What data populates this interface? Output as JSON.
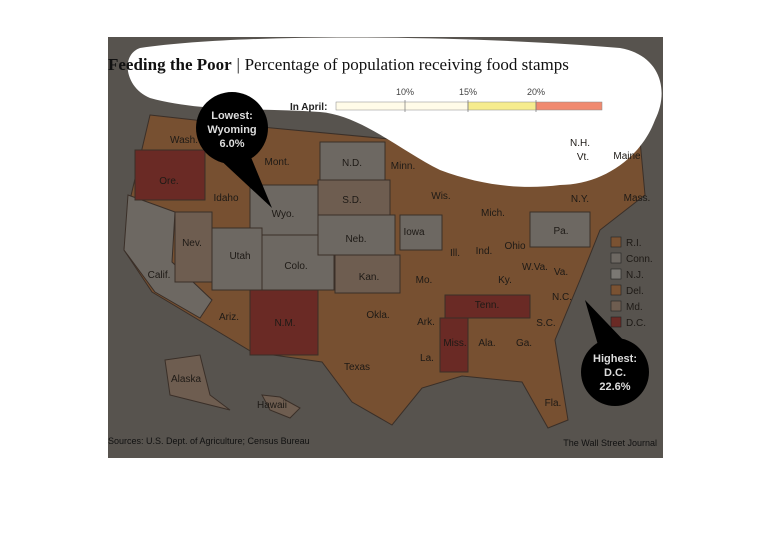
{
  "header": {
    "title": "Feeding the Poor",
    "separator": "|",
    "subtitle": "Percentage of population receiving food stamps"
  },
  "legend": {
    "label": "In April:",
    "ticks": [
      "10%",
      "15%",
      "20%"
    ]
  },
  "lowest": {
    "heading": "Lowest:",
    "state": "Wyoming",
    "value": "6.0%"
  },
  "highest": {
    "heading": "Highest:",
    "state": "D.C.",
    "value": "22.6%"
  },
  "states": [
    "Wash.",
    "Ore.",
    "Idaho",
    "Mont.",
    "Wyo.",
    "N.D.",
    "S.D.",
    "Neb.",
    "Minn.",
    "Wis.",
    "Mich.",
    "Iowa",
    "Ill.",
    "Ind.",
    "Ohio",
    "Pa.",
    "N.Y.",
    "Vt.",
    "N.H.",
    "Maine",
    "Mass.",
    "Nev.",
    "Calif.",
    "Utah",
    "Colo.",
    "Kan.",
    "Mo.",
    "Ky.",
    "W.Va.",
    "Va.",
    "N.C.",
    "Tenn.",
    "S.C.",
    "Ark.",
    "Okla.",
    "Ariz.",
    "N.M.",
    "Texas",
    "La.",
    "Miss.",
    "Ala.",
    "Ga.",
    "Fla.",
    "Alaska",
    "Hawaii"
  ],
  "small_states": [
    {
      "name": "R.I.",
      "color": "#7a5232"
    },
    {
      "name": "Conn.",
      "color": "#6d6862"
    },
    {
      "name": "N.J.",
      "color": "#7b7873"
    },
    {
      "name": "Del.",
      "color": "#7a5232"
    },
    {
      "name": "Md.",
      "color": "#6e5d50"
    },
    {
      "name": "D.C.",
      "color": "#6a2a25"
    }
  ],
  "footer": {
    "sources": "Sources: U.S. Dept. of Agriculture; Census Bureau",
    "credit": "The Wall Street Journal"
  }
}
